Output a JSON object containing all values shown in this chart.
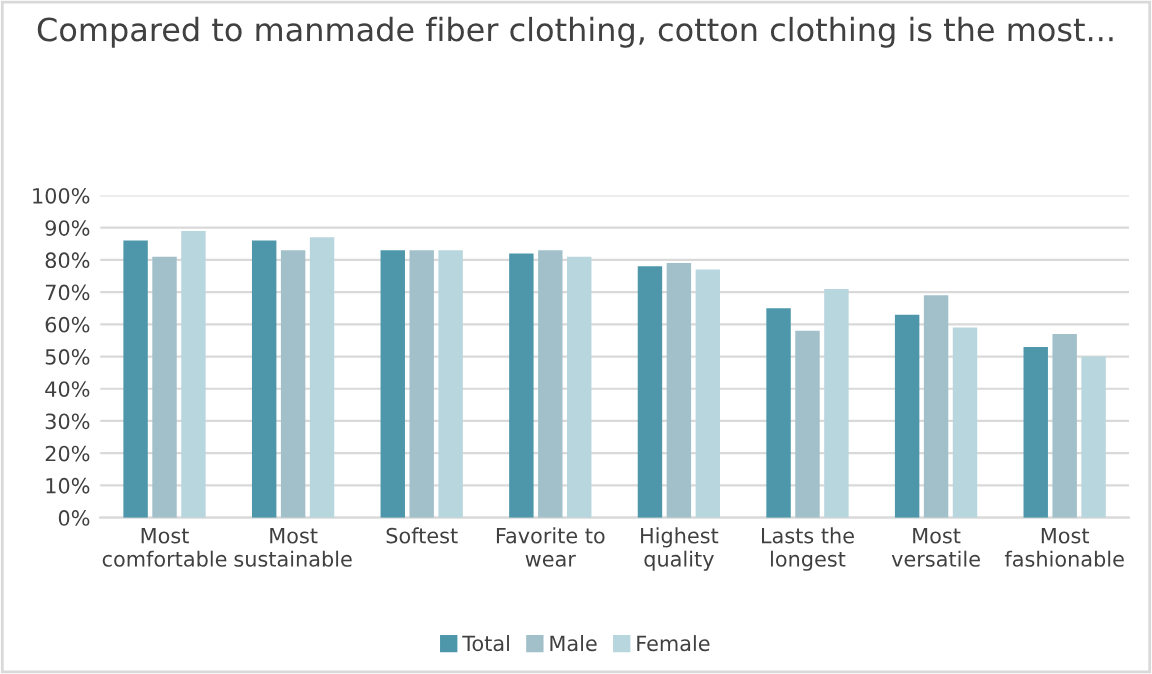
{
  "chart_data": {
    "type": "bar",
    "title": "Compared to manmade fiber clothing, cotton clothing is the most...",
    "categories": [
      "Most\ncomfortable",
      "Most\nsustainable",
      "Softest",
      "Favorite to\nwear",
      "Highest\nquality",
      "Lasts the\nlongest",
      "Most\nversatile",
      "Most\nfashionable"
    ],
    "series": [
      {
        "name": "Total",
        "color": "#4e97ab",
        "values": [
          86,
          86,
          83,
          82,
          78,
          65,
          63,
          53
        ]
      },
      {
        "name": "Male",
        "color": "#a2c0c9",
        "values": [
          81,
          83,
          83,
          83,
          79,
          58,
          69,
          57
        ]
      },
      {
        "name": "Female",
        "color": "#b8d6dd",
        "values": [
          89,
          87,
          83,
          81,
          77,
          71,
          59,
          50
        ]
      }
    ],
    "ylim": [
      0,
      100
    ],
    "yticks": [
      {
        "value": 0,
        "label": "0%"
      },
      {
        "value": 10,
        "label": "10%"
      },
      {
        "value": 20,
        "label": "20%"
      },
      {
        "value": 30,
        "label": "30%"
      },
      {
        "value": 40,
        "label": "40%"
      },
      {
        "value": 50,
        "label": "50%"
      },
      {
        "value": 60,
        "label": "60%"
      },
      {
        "value": 70,
        "label": "70%"
      },
      {
        "value": 80,
        "label": "80%"
      },
      {
        "value": 90,
        "label": "90%"
      },
      {
        "value": 100,
        "label": "100%"
      }
    ],
    "grid": "y",
    "legend": "bottom"
  }
}
